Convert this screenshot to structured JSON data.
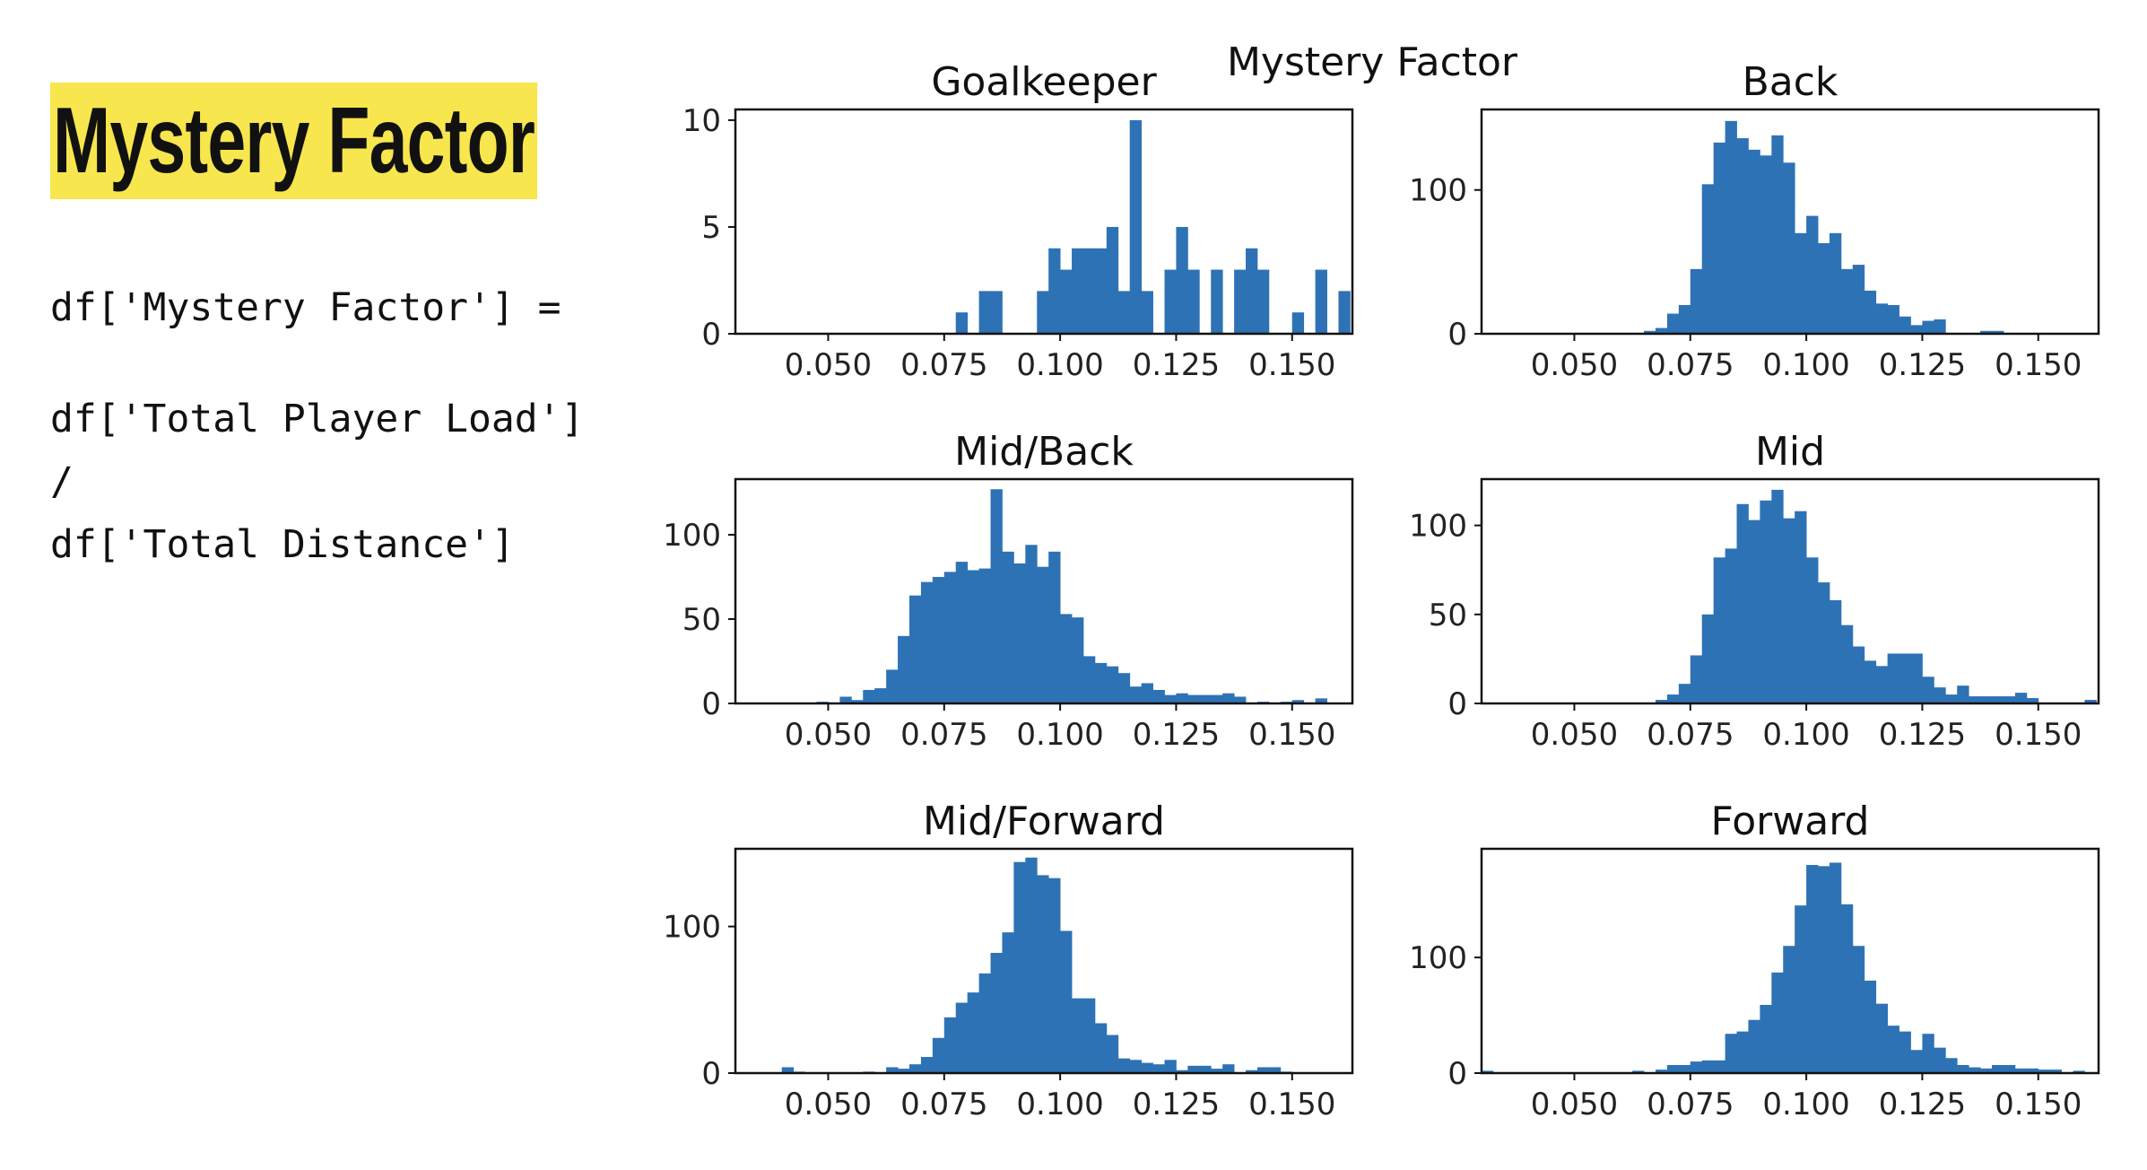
{
  "slide": {
    "title": "Mystery Factor",
    "code_lines": [
      "df['Mystery Factor'] =",
      "",
      "df['Total Player Load']",
      "/",
      "df['Total Distance']"
    ]
  },
  "colors": {
    "bar": "#2e72b6",
    "title_highlight": "#f7e64d",
    "axes": "#111111"
  },
  "chart_data": [
    {
      "type": "histogram",
      "suptitle": "Mystery Factor",
      "title": "Goalkeeper",
      "xlim": [
        0.03,
        0.163
      ],
      "ylim": [
        0,
        10.5
      ],
      "xticks": [
        "0.050",
        "0.075",
        "0.100",
        "0.125",
        "0.150"
      ],
      "xtick_values": [
        0.05,
        0.075,
        0.1,
        0.125,
        0.15
      ],
      "yticks": [
        "0",
        "5",
        "10"
      ],
      "ytick_values": [
        0,
        5,
        10
      ],
      "bin_width": 0.0025,
      "bins": [
        {
          "x": 0.0775,
          "y": 1
        },
        {
          "x": 0.0825,
          "y": 2
        },
        {
          "x": 0.085,
          "y": 2
        },
        {
          "x": 0.095,
          "y": 2
        },
        {
          "x": 0.0975,
          "y": 4
        },
        {
          "x": 0.1,
          "y": 3
        },
        {
          "x": 0.1025,
          "y": 4
        },
        {
          "x": 0.105,
          "y": 4
        },
        {
          "x": 0.1075,
          "y": 4
        },
        {
          "x": 0.11,
          "y": 5
        },
        {
          "x": 0.1125,
          "y": 2
        },
        {
          "x": 0.115,
          "y": 10
        },
        {
          "x": 0.1175,
          "y": 2
        },
        {
          "x": 0.1225,
          "y": 3
        },
        {
          "x": 0.125,
          "y": 5
        },
        {
          "x": 0.1275,
          "y": 3
        },
        {
          "x": 0.1325,
          "y": 3
        },
        {
          "x": 0.1375,
          "y": 3
        },
        {
          "x": 0.14,
          "y": 4
        },
        {
          "x": 0.1425,
          "y": 3
        },
        {
          "x": 0.15,
          "y": 1
        },
        {
          "x": 0.155,
          "y": 3
        },
        {
          "x": 0.16,
          "y": 2
        }
      ]
    },
    {
      "type": "histogram",
      "title": "Back",
      "xlim": [
        0.03,
        0.163
      ],
      "ylim": [
        0,
        156
      ],
      "xticks": [
        "0.050",
        "0.075",
        "0.100",
        "0.125",
        "0.150"
      ],
      "xtick_values": [
        0.05,
        0.075,
        0.1,
        0.125,
        0.15
      ],
      "yticks": [
        "0",
        "100"
      ],
      "ytick_values": [
        0,
        100
      ],
      "bin_width": 0.0025,
      "bins": [
        {
          "x": 0.065,
          "y": 2
        },
        {
          "x": 0.0675,
          "y": 4
        },
        {
          "x": 0.07,
          "y": 14
        },
        {
          "x": 0.0725,
          "y": 20
        },
        {
          "x": 0.075,
          "y": 45
        },
        {
          "x": 0.0775,
          "y": 104
        },
        {
          "x": 0.08,
          "y": 133
        },
        {
          "x": 0.0825,
          "y": 148
        },
        {
          "x": 0.085,
          "y": 136
        },
        {
          "x": 0.0875,
          "y": 128
        },
        {
          "x": 0.09,
          "y": 124
        },
        {
          "x": 0.0925,
          "y": 138
        },
        {
          "x": 0.095,
          "y": 119
        },
        {
          "x": 0.0975,
          "y": 70
        },
        {
          "x": 0.1,
          "y": 82
        },
        {
          "x": 0.1025,
          "y": 63
        },
        {
          "x": 0.105,
          "y": 70
        },
        {
          "x": 0.1075,
          "y": 45
        },
        {
          "x": 0.11,
          "y": 48
        },
        {
          "x": 0.1125,
          "y": 30
        },
        {
          "x": 0.115,
          "y": 21
        },
        {
          "x": 0.1175,
          "y": 20
        },
        {
          "x": 0.12,
          "y": 12
        },
        {
          "x": 0.1225,
          "y": 6
        },
        {
          "x": 0.125,
          "y": 9
        },
        {
          "x": 0.1275,
          "y": 10
        },
        {
          "x": 0.1375,
          "y": 2
        },
        {
          "x": 0.14,
          "y": 2
        }
      ]
    },
    {
      "type": "histogram",
      "title": "Mid/Back",
      "xlim": [
        0.03,
        0.163
      ],
      "ylim": [
        0,
        133
      ],
      "xticks": [
        "0.050",
        "0.075",
        "0.100",
        "0.125",
        "0.150"
      ],
      "xtick_values": [
        0.05,
        0.075,
        0.1,
        0.125,
        0.15
      ],
      "yticks": [
        "0",
        "50",
        "100"
      ],
      "ytick_values": [
        0,
        50,
        100
      ],
      "bin_width": 0.0025,
      "bins": [
        {
          "x": 0.0475,
          "y": 1
        },
        {
          "x": 0.0525,
          "y": 4
        },
        {
          "x": 0.055,
          "y": 2
        },
        {
          "x": 0.0575,
          "y": 8
        },
        {
          "x": 0.06,
          "y": 9
        },
        {
          "x": 0.0625,
          "y": 20
        },
        {
          "x": 0.065,
          "y": 40
        },
        {
          "x": 0.0675,
          "y": 64
        },
        {
          "x": 0.07,
          "y": 72
        },
        {
          "x": 0.0725,
          "y": 75
        },
        {
          "x": 0.075,
          "y": 78
        },
        {
          "x": 0.0775,
          "y": 84
        },
        {
          "x": 0.08,
          "y": 79
        },
        {
          "x": 0.0825,
          "y": 80
        },
        {
          "x": 0.085,
          "y": 127
        },
        {
          "x": 0.0875,
          "y": 90
        },
        {
          "x": 0.09,
          "y": 83
        },
        {
          "x": 0.0925,
          "y": 94
        },
        {
          "x": 0.095,
          "y": 81
        },
        {
          "x": 0.0975,
          "y": 90
        },
        {
          "x": 0.1,
          "y": 53
        },
        {
          "x": 0.1025,
          "y": 51
        },
        {
          "x": 0.105,
          "y": 28
        },
        {
          "x": 0.1075,
          "y": 24
        },
        {
          "x": 0.11,
          "y": 22
        },
        {
          "x": 0.1125,
          "y": 18
        },
        {
          "x": 0.115,
          "y": 10
        },
        {
          "x": 0.1175,
          "y": 12
        },
        {
          "x": 0.12,
          "y": 8
        },
        {
          "x": 0.1225,
          "y": 5
        },
        {
          "x": 0.125,
          "y": 6
        },
        {
          "x": 0.1275,
          "y": 5
        },
        {
          "x": 0.13,
          "y": 5
        },
        {
          "x": 0.1325,
          "y": 5
        },
        {
          "x": 0.135,
          "y": 6
        },
        {
          "x": 0.1375,
          "y": 4
        },
        {
          "x": 0.1425,
          "y": 1
        },
        {
          "x": 0.1475,
          "y": 1
        },
        {
          "x": 0.15,
          "y": 2
        },
        {
          "x": 0.155,
          "y": 3
        }
      ]
    },
    {
      "type": "histogram",
      "title": "Mid",
      "xlim": [
        0.03,
        0.163
      ],
      "ylim": [
        0,
        126
      ],
      "xticks": [
        "0.050",
        "0.075",
        "0.100",
        "0.125",
        "0.150"
      ],
      "xtick_values": [
        0.05,
        0.075,
        0.1,
        0.125,
        0.15
      ],
      "yticks": [
        "0",
        "50",
        "100"
      ],
      "ytick_values": [
        0,
        50,
        100
      ],
      "bin_width": 0.0025,
      "bins": [
        {
          "x": 0.0675,
          "y": 2
        },
        {
          "x": 0.07,
          "y": 5
        },
        {
          "x": 0.0725,
          "y": 11
        },
        {
          "x": 0.075,
          "y": 27
        },
        {
          "x": 0.0775,
          "y": 50
        },
        {
          "x": 0.08,
          "y": 82
        },
        {
          "x": 0.0825,
          "y": 87
        },
        {
          "x": 0.085,
          "y": 112
        },
        {
          "x": 0.0875,
          "y": 103
        },
        {
          "x": 0.09,
          "y": 114
        },
        {
          "x": 0.0925,
          "y": 120
        },
        {
          "x": 0.095,
          "y": 104
        },
        {
          "x": 0.0975,
          "y": 108
        },
        {
          "x": 0.1,
          "y": 82
        },
        {
          "x": 0.1025,
          "y": 68
        },
        {
          "x": 0.105,
          "y": 58
        },
        {
          "x": 0.1075,
          "y": 44
        },
        {
          "x": 0.11,
          "y": 32
        },
        {
          "x": 0.1125,
          "y": 24
        },
        {
          "x": 0.115,
          "y": 21
        },
        {
          "x": 0.1175,
          "y": 28
        },
        {
          "x": 0.12,
          "y": 28
        },
        {
          "x": 0.1225,
          "y": 28
        },
        {
          "x": 0.125,
          "y": 15
        },
        {
          "x": 0.1275,
          "y": 9
        },
        {
          "x": 0.13,
          "y": 5
        },
        {
          "x": 0.1325,
          "y": 10
        },
        {
          "x": 0.135,
          "y": 4
        },
        {
          "x": 0.1375,
          "y": 4
        },
        {
          "x": 0.14,
          "y": 4
        },
        {
          "x": 0.1425,
          "y": 4
        },
        {
          "x": 0.145,
          "y": 6
        },
        {
          "x": 0.1475,
          "y": 3
        },
        {
          "x": 0.16,
          "y": 2
        }
      ]
    },
    {
      "type": "histogram",
      "title": "Mid/Forward",
      "xlim": [
        0.03,
        0.163
      ],
      "ylim": [
        0,
        153
      ],
      "xticks": [
        "0.050",
        "0.075",
        "0.100",
        "0.125",
        "0.150"
      ],
      "xtick_values": [
        0.05,
        0.075,
        0.1,
        0.125,
        0.15
      ],
      "yticks": [
        "0",
        "100"
      ],
      "ytick_values": [
        0,
        100
      ],
      "bin_width": 0.0025,
      "bins": [
        {
          "x": 0.04,
          "y": 4
        },
        {
          "x": 0.0425,
          "y": 1
        },
        {
          "x": 0.0575,
          "y": 1
        },
        {
          "x": 0.0625,
          "y": 4
        },
        {
          "x": 0.065,
          "y": 3
        },
        {
          "x": 0.0675,
          "y": 6
        },
        {
          "x": 0.07,
          "y": 11
        },
        {
          "x": 0.0725,
          "y": 24
        },
        {
          "x": 0.075,
          "y": 38
        },
        {
          "x": 0.0775,
          "y": 48
        },
        {
          "x": 0.08,
          "y": 55
        },
        {
          "x": 0.0825,
          "y": 68
        },
        {
          "x": 0.085,
          "y": 82
        },
        {
          "x": 0.0875,
          "y": 96
        },
        {
          "x": 0.09,
          "y": 144
        },
        {
          "x": 0.0925,
          "y": 147
        },
        {
          "x": 0.095,
          "y": 135
        },
        {
          "x": 0.0975,
          "y": 133
        },
        {
          "x": 0.1,
          "y": 97
        },
        {
          "x": 0.1025,
          "y": 51
        },
        {
          "x": 0.105,
          "y": 51
        },
        {
          "x": 0.1075,
          "y": 34
        },
        {
          "x": 0.11,
          "y": 26
        },
        {
          "x": 0.1125,
          "y": 10
        },
        {
          "x": 0.115,
          "y": 9
        },
        {
          "x": 0.1175,
          "y": 7
        },
        {
          "x": 0.12,
          "y": 6
        },
        {
          "x": 0.1225,
          "y": 9
        },
        {
          "x": 0.125,
          "y": 2
        },
        {
          "x": 0.1275,
          "y": 5
        },
        {
          "x": 0.13,
          "y": 5
        },
        {
          "x": 0.1325,
          "y": 3
        },
        {
          "x": 0.135,
          "y": 6
        },
        {
          "x": 0.14,
          "y": 2
        },
        {
          "x": 0.1425,
          "y": 4
        },
        {
          "x": 0.145,
          "y": 4
        },
        {
          "x": 0.1475,
          "y": 1
        }
      ]
    },
    {
      "type": "histogram",
      "title": "Forward",
      "xlim": [
        0.03,
        0.163
      ],
      "ylim": [
        0,
        194
      ],
      "xticks": [
        "0.050",
        "0.075",
        "0.100",
        "0.125",
        "0.150"
      ],
      "xtick_values": [
        0.05,
        0.075,
        0.1,
        0.125,
        0.15
      ],
      "yticks": [
        "0",
        "100"
      ],
      "ytick_values": [
        0,
        100
      ],
      "bin_width": 0.0025,
      "bins": [
        {
          "x": 0.03,
          "y": 2
        },
        {
          "x": 0.0625,
          "y": 2
        },
        {
          "x": 0.0675,
          "y": 3
        },
        {
          "x": 0.07,
          "y": 7
        },
        {
          "x": 0.0725,
          "y": 7
        },
        {
          "x": 0.075,
          "y": 10
        },
        {
          "x": 0.0775,
          "y": 11
        },
        {
          "x": 0.08,
          "y": 11
        },
        {
          "x": 0.0825,
          "y": 34
        },
        {
          "x": 0.085,
          "y": 36
        },
        {
          "x": 0.0875,
          "y": 46
        },
        {
          "x": 0.09,
          "y": 59
        },
        {
          "x": 0.0925,
          "y": 87
        },
        {
          "x": 0.095,
          "y": 110
        },
        {
          "x": 0.0975,
          "y": 145
        },
        {
          "x": 0.1,
          "y": 180
        },
        {
          "x": 0.1025,
          "y": 179
        },
        {
          "x": 0.105,
          "y": 182
        },
        {
          "x": 0.1075,
          "y": 146
        },
        {
          "x": 0.11,
          "y": 110
        },
        {
          "x": 0.1125,
          "y": 80
        },
        {
          "x": 0.115,
          "y": 60
        },
        {
          "x": 0.1175,
          "y": 41
        },
        {
          "x": 0.12,
          "y": 36
        },
        {
          "x": 0.1225,
          "y": 20
        },
        {
          "x": 0.125,
          "y": 34
        },
        {
          "x": 0.1275,
          "y": 22
        },
        {
          "x": 0.13,
          "y": 13
        },
        {
          "x": 0.1325,
          "y": 7
        },
        {
          "x": 0.135,
          "y": 5
        },
        {
          "x": 0.1375,
          "y": 4
        },
        {
          "x": 0.14,
          "y": 7
        },
        {
          "x": 0.1425,
          "y": 7
        },
        {
          "x": 0.145,
          "y": 4
        },
        {
          "x": 0.1475,
          "y": 4
        },
        {
          "x": 0.15,
          "y": 3
        },
        {
          "x": 0.1525,
          "y": 3
        },
        {
          "x": 0.1575,
          "y": 2
        }
      ]
    }
  ]
}
